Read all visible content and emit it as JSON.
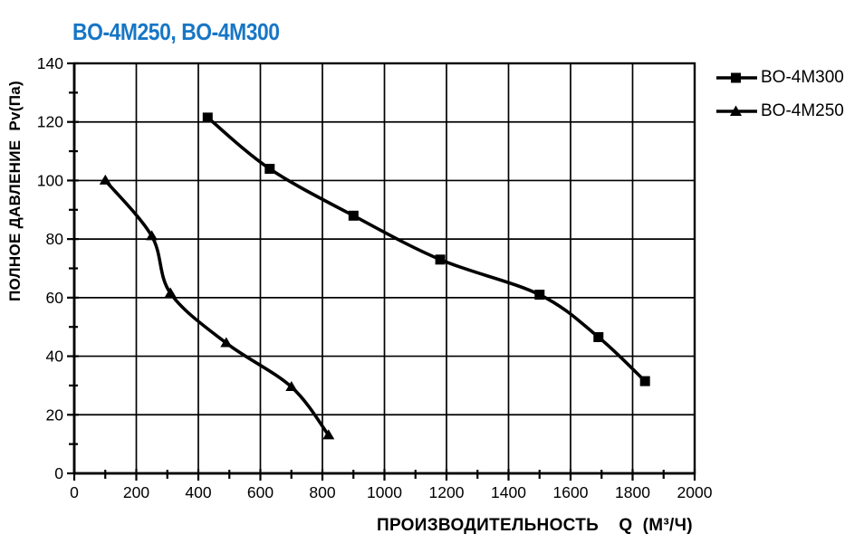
{
  "title": {
    "text": "BO-4M250, BO-4M300",
    "color": "#1776C6"
  },
  "chart_data": {
    "type": "line",
    "title": "BO-4M250, BO-4M300",
    "title_color": "#1776C6",
    "xlabel": "ПРОИЗВОДИТЕЛЬНОСТЬ    Q  (М³/Ч)",
    "ylabel": "ПОЛНОЕ ДАВЛЕНИЕ  Pv(Па)",
    "xlim": [
      0,
      2000
    ],
    "ylim": [
      0,
      140
    ],
    "x_major_step": 200,
    "x_minor_step": 100,
    "y_major_step": 20,
    "y_minor_step": 10,
    "grid": true,
    "legend_position": "top-right",
    "line_color": "#000000",
    "series": [
      {
        "name": "BO-4M300",
        "marker": "square",
        "points": [
          [
            430,
            121.5
          ],
          [
            630,
            104
          ],
          [
            900,
            88
          ],
          [
            1180,
            73
          ],
          [
            1500,
            61
          ],
          [
            1690,
            46.5
          ],
          [
            1840,
            31.5
          ]
        ]
      },
      {
        "name": "BO-4M250",
        "marker": "triangle",
        "points": [
          [
            100,
            100
          ],
          [
            250,
            81
          ],
          [
            310,
            61.5
          ],
          [
            490,
            44.5
          ],
          [
            700,
            29.5
          ],
          [
            820,
            13
          ]
        ]
      }
    ]
  }
}
